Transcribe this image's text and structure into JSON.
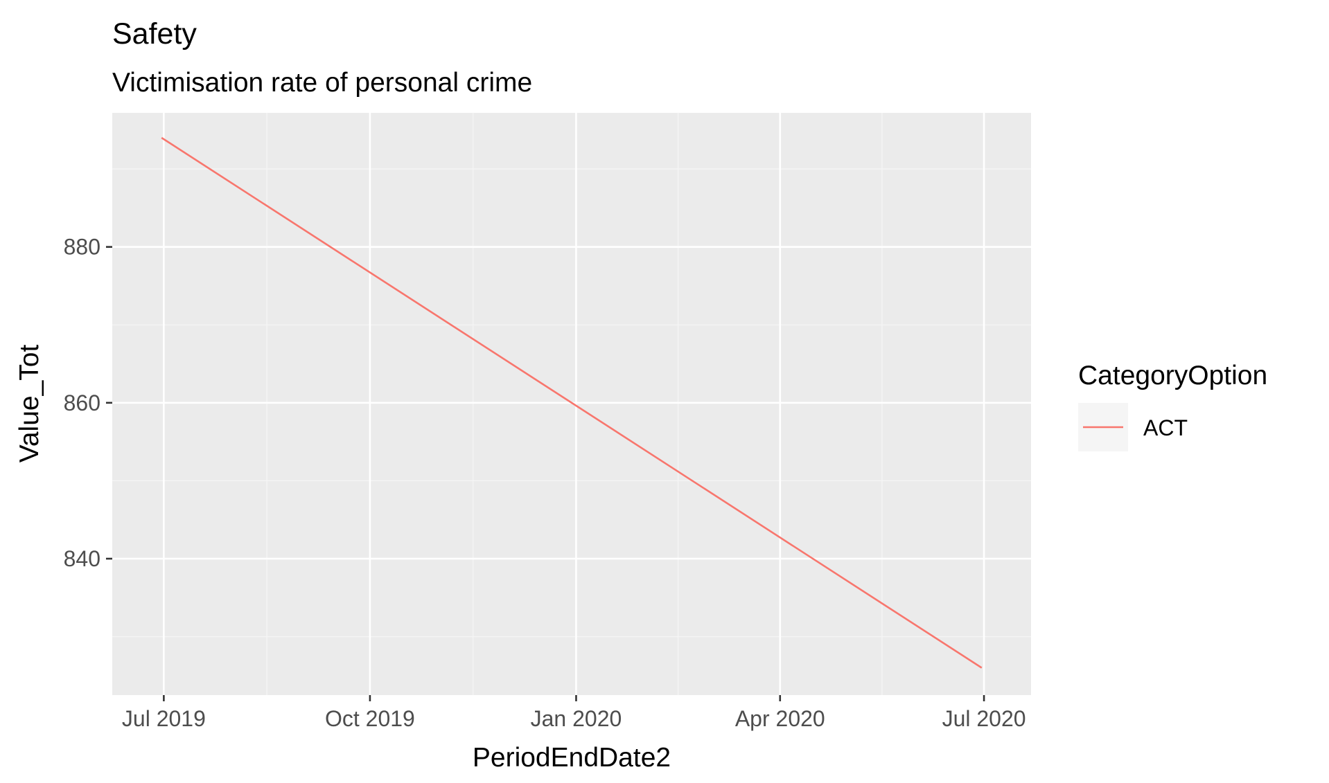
{
  "colors": {
    "panel_background": "#EBEBEB",
    "grid_major": "#FFFFFF",
    "grid_minor": "#F5F5F5",
    "series_act": "#F8766D",
    "tick_mark": "#333333",
    "tick_label": "#4D4D4D"
  },
  "chart_data": {
    "type": "line",
    "title": "Safety",
    "subtitle": "Victimisation rate of personal crime",
    "xlabel": "PeriodEndDate2",
    "ylabel": "Value_Tot",
    "x_ticks": [
      {
        "date": "2019-07-01",
        "label": "Jul 2019"
      },
      {
        "date": "2019-10-01",
        "label": "Oct 2019"
      },
      {
        "date": "2020-01-01",
        "label": "Jan 2020"
      },
      {
        "date": "2020-04-01",
        "label": "Apr 2020"
      },
      {
        "date": "2020-07-01",
        "label": "Jul 2020"
      }
    ],
    "y_ticks": [
      840,
      860,
      880
    ],
    "ylim": [
      822.5,
      897.2
    ],
    "xlim": [
      "2019-06-08",
      "2020-07-22"
    ],
    "grid": true,
    "legend": {
      "title": "CategoryOption",
      "placement": "right",
      "entries": [
        {
          "label": "ACT",
          "color": "#F8766D"
        }
      ]
    },
    "series": [
      {
        "name": "ACT",
        "color": "#F8766D",
        "points": [
          {
            "x": "2019-06-30",
            "y": 894.0
          },
          {
            "x": "2020-06-30",
            "y": 826.0
          }
        ]
      }
    ]
  }
}
